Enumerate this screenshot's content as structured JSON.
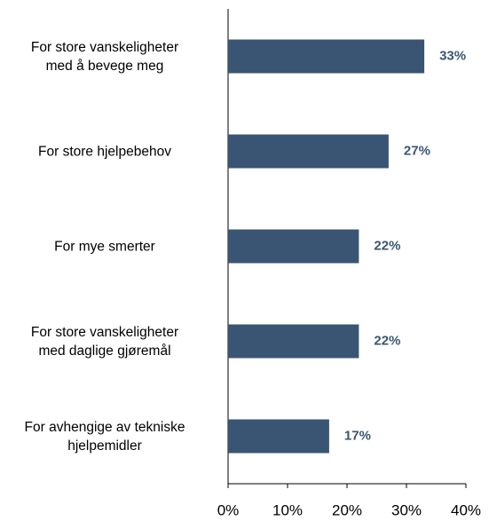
{
  "chart_data": {
    "type": "bar",
    "orientation": "horizontal",
    "categories": [
      "For store vanskeligheter\nmed å bevege meg",
      "For store hjelpebehov",
      "For mye smerter",
      "For store vanskeligheter\nmed daglige gjøremål",
      "For avhengige av tekniske\nhjelpemidler"
    ],
    "values": [
      33,
      27,
      22,
      22,
      17
    ],
    "value_labels": [
      "33%",
      "27%",
      "22%",
      "22%",
      "17%"
    ],
    "color": "#3a5573",
    "xlim": [
      0,
      40
    ],
    "xticks": [
      {
        "value": 0,
        "label": "0%"
      },
      {
        "value": 10,
        "label": "10%"
      },
      {
        "value": 20,
        "label": "20%"
      },
      {
        "value": 30,
        "label": "30%"
      },
      {
        "value": 40,
        "label": "40%"
      }
    ]
  }
}
